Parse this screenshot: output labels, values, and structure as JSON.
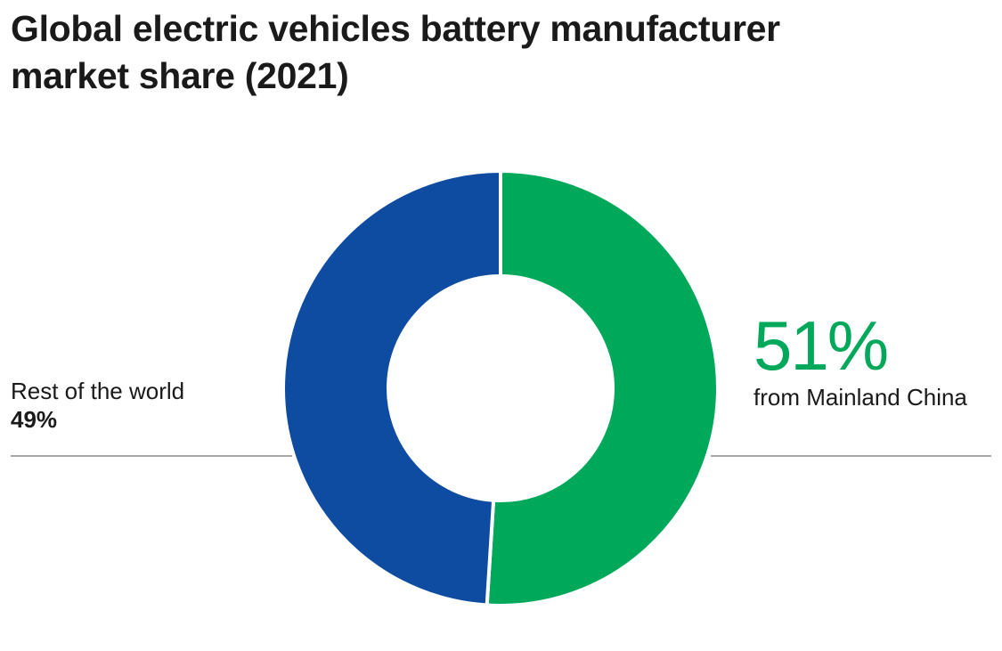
{
  "chart_data": {
    "type": "pie",
    "title": "Global electric vehicles battery manufacturer market share (2021)",
    "slices": [
      {
        "label": "from Mainland China",
        "value": 51,
        "display": "51%",
        "color": "#00a85a"
      },
      {
        "label": "Rest of the world",
        "value": 49,
        "display": "49%",
        "color": "#0d4ca0"
      }
    ],
    "donut": true,
    "legend": "direct-labels"
  }
}
